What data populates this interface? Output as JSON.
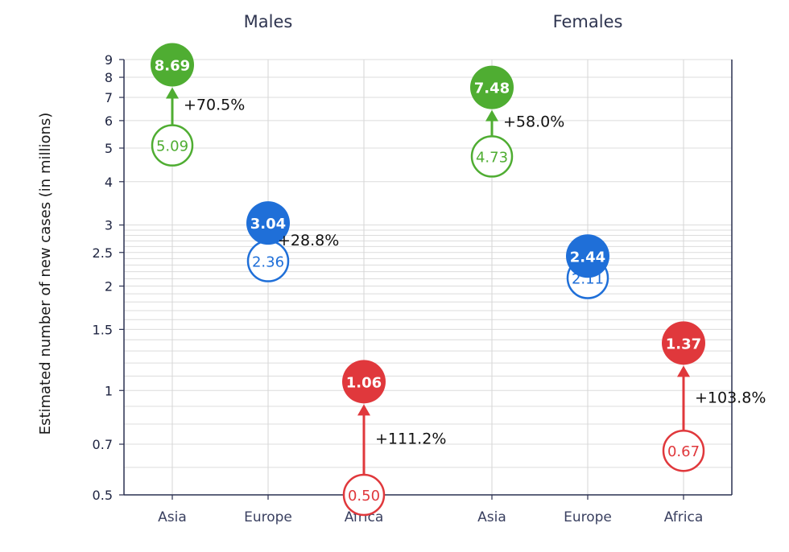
{
  "chart_data": {
    "type": "scatter",
    "panels": [
      {
        "title": "Males",
        "categories": [
          "Asia",
          "Europe",
          "Africa"
        ],
        "from_values": [
          5.09,
          2.36,
          0.5
        ],
        "to_values": [
          8.69,
          3.04,
          1.06
        ],
        "from_labels": [
          "5.09",
          "2.36",
          "0.50"
        ],
        "to_labels": [
          "8.69",
          "3.04",
          "1.06"
        ],
        "change_labels": [
          "+70.5%",
          "+28.8%",
          "+111.2%"
        ]
      },
      {
        "title": "Females",
        "categories": [
          "Asia",
          "Europe",
          "Africa"
        ],
        "from_values": [
          4.73,
          2.11,
          0.67
        ],
        "to_values": [
          7.48,
          2.44,
          1.37
        ],
        "from_labels": [
          "4.73",
          "2.11",
          "0.67"
        ],
        "to_labels": [
          "7.48",
          "2.44",
          "1.37"
        ],
        "change_labels": [
          "+58.0%",
          "",
          "+103.8%"
        ]
      }
    ],
    "ylabel": "Estimated number of new cases (in millions)",
    "yscale": "log",
    "ylim": [
      0.5,
      9
    ],
    "yticks": [
      0.5,
      0.7,
      1,
      1.5,
      2,
      2.5,
      3,
      4,
      5,
      6,
      7,
      8,
      9
    ],
    "ytick_labels": [
      "0.5",
      "0.7",
      "1",
      "1.5",
      "2",
      "2.5",
      "3",
      "4",
      "5",
      "6",
      "7",
      "8",
      "9"
    ],
    "ygrid": [
      0.5,
      0.6,
      0.7,
      0.8,
      0.9,
      1,
      1.1,
      1.2,
      1.3,
      1.4,
      1.5,
      1.6,
      1.7,
      1.8,
      1.9,
      2,
      2.1,
      2.2,
      2.3,
      2.4,
      2.5,
      2.6,
      2.7,
      2.8,
      2.9,
      3,
      4,
      5,
      6,
      7,
      8,
      9
    ],
    "grid": true,
    "colors": {
      "Asia": "#4fad32",
      "Europe": "#1f6fd8",
      "Africa": "#e0383c"
    }
  }
}
